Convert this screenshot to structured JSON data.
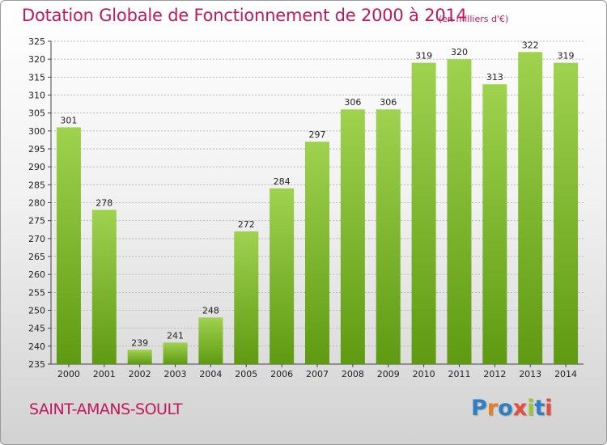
{
  "header": {
    "title": "Dotation Globale de Fonctionnement de 2000 à 2014",
    "subtitle": "(en milliers d'€)"
  },
  "footer": {
    "commune": "SAINT-AMANS-SOULT",
    "logo_text": "Proxiti",
    "logo_letter_colors": [
      "#2f7fc6",
      "#e67e22",
      "#2f7fc6",
      "#e74c3c",
      "#9bc53d",
      "#2f7fc6",
      "#e74c3c"
    ]
  },
  "colors": {
    "title": "#c2185b",
    "bar_top": "#9fd24f",
    "bar_bottom": "#5f9a12",
    "grid": "#bbbbbb"
  },
  "chart_data": {
    "type": "bar",
    "title": "Dotation Globale de Fonctionnement de 2000 à 2014",
    "subtitle": "(en milliers d'€)",
    "xlabel": "",
    "ylabel": "",
    "categories": [
      "2000",
      "2001",
      "2002",
      "2003",
      "2004",
      "2005",
      "2006",
      "2007",
      "2008",
      "2009",
      "2010",
      "2011",
      "2012",
      "2013",
      "2014"
    ],
    "values": [
      301,
      278,
      239,
      241,
      248,
      272,
      284,
      297,
      306,
      306,
      319,
      320,
      313,
      322,
      319
    ],
    "data_labels": [
      "301",
      "278",
      "239",
      "241",
      "248",
      "272",
      "284",
      "297",
      "306",
      "306",
      "319",
      "320",
      "313",
      "322",
      "319"
    ],
    "ylim": [
      235,
      325
    ],
    "y_ticks": [
      235,
      240,
      245,
      250,
      255,
      260,
      265,
      270,
      275,
      280,
      285,
      290,
      295,
      300,
      305,
      310,
      315,
      320,
      325
    ],
    "grid": true,
    "legend": "none"
  }
}
